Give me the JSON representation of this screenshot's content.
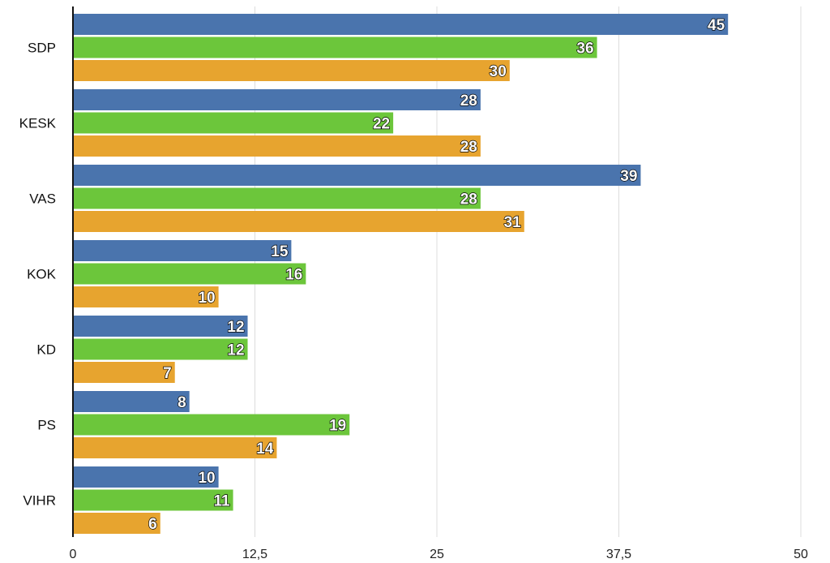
{
  "chart_data": {
    "type": "bar",
    "orientation": "horizontal",
    "title": "",
    "xlabel": "",
    "ylabel": "",
    "categories": [
      "SDP",
      "KESK",
      "VAS",
      "KOK",
      "KD",
      "PS",
      "VIHR"
    ],
    "series": [
      {
        "color": "#4a74ad",
        "values": [
          45,
          28,
          39,
          15,
          12,
          8,
          10
        ]
      },
      {
        "color": "#6cc63b",
        "values": [
          36,
          22,
          28,
          16,
          12,
          19,
          11
        ]
      },
      {
        "color": "#e7a42f",
        "values": [
          30,
          28,
          31,
          10,
          7,
          14,
          6
        ]
      }
    ],
    "xlim": [
      0,
      50
    ],
    "ticks": [
      0,
      12.5,
      25,
      37.5,
      50
    ],
    "tick_labels": [
      "0",
      "12,5",
      "25",
      "37,5",
      "50"
    ],
    "grid": true,
    "legend": "none",
    "data_labels": true
  }
}
